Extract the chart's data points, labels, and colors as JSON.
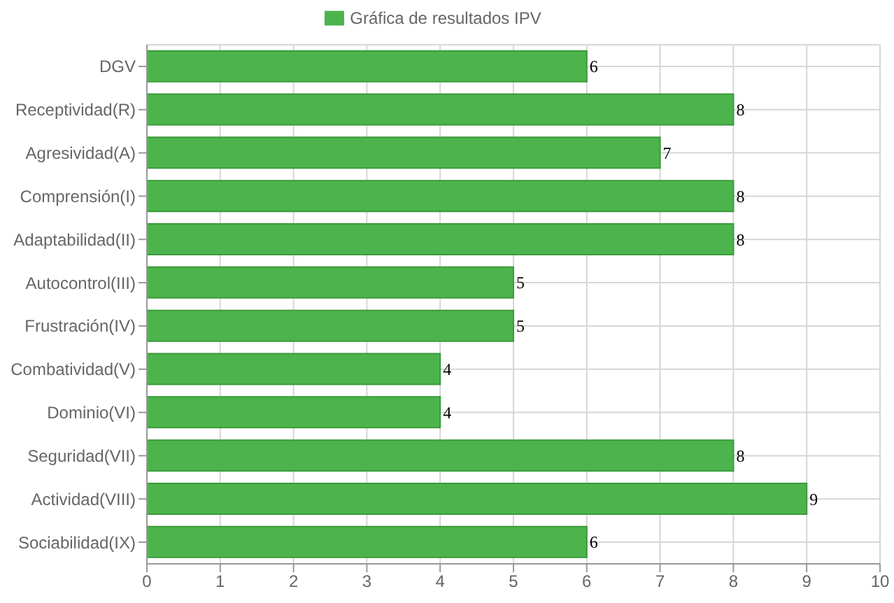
{
  "chart_data": {
    "type": "bar",
    "orientation": "horizontal",
    "categories": [
      "DGV",
      "Receptividad(R)",
      "Agresividad(A)",
      "Comprensión(I)",
      "Adaptabilidad(II)",
      "Autocontrol(III)",
      "Frustración(IV)",
      "Combatividad(V)",
      "Dominio(VI)",
      "Seguridad(VII)",
      "Actividad(VIII)",
      "Sociabilidad(IX)"
    ],
    "series": [
      {
        "name": "Gráfica de resultados IPV",
        "color": "#4db44d",
        "values": [
          6,
          8,
          7,
          8,
          8,
          5,
          5,
          4,
          4,
          8,
          9,
          6
        ]
      }
    ],
    "xlim": [
      0,
      10
    ],
    "xticks": [
      0,
      1,
      2,
      3,
      4,
      5,
      6,
      7,
      8,
      9,
      10
    ],
    "grid": true,
    "legend": "top",
    "data_labels": true
  }
}
